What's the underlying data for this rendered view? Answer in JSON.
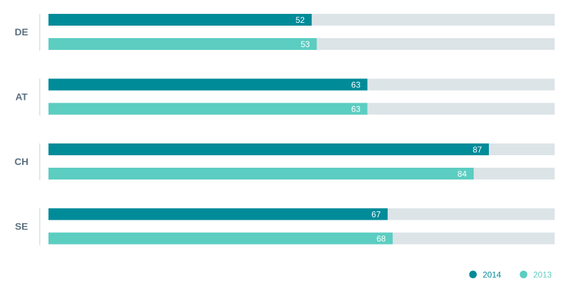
{
  "chart_data": {
    "type": "bar",
    "orientation": "horizontal",
    "categories": [
      "DE",
      "AT",
      "CH",
      "SE"
    ],
    "series": [
      {
        "name": "2014",
        "values": [
          52,
          63,
          87,
          67
        ],
        "color": "#008b99"
      },
      {
        "name": "2013",
        "values": [
          53,
          63,
          84,
          68
        ],
        "color": "#5ccdc1"
      }
    ],
    "xlim": [
      0,
      100
    ],
    "track_color": "#dce4e8",
    "grid": false,
    "legend_position": "bottom-right",
    "data_labels": true
  }
}
